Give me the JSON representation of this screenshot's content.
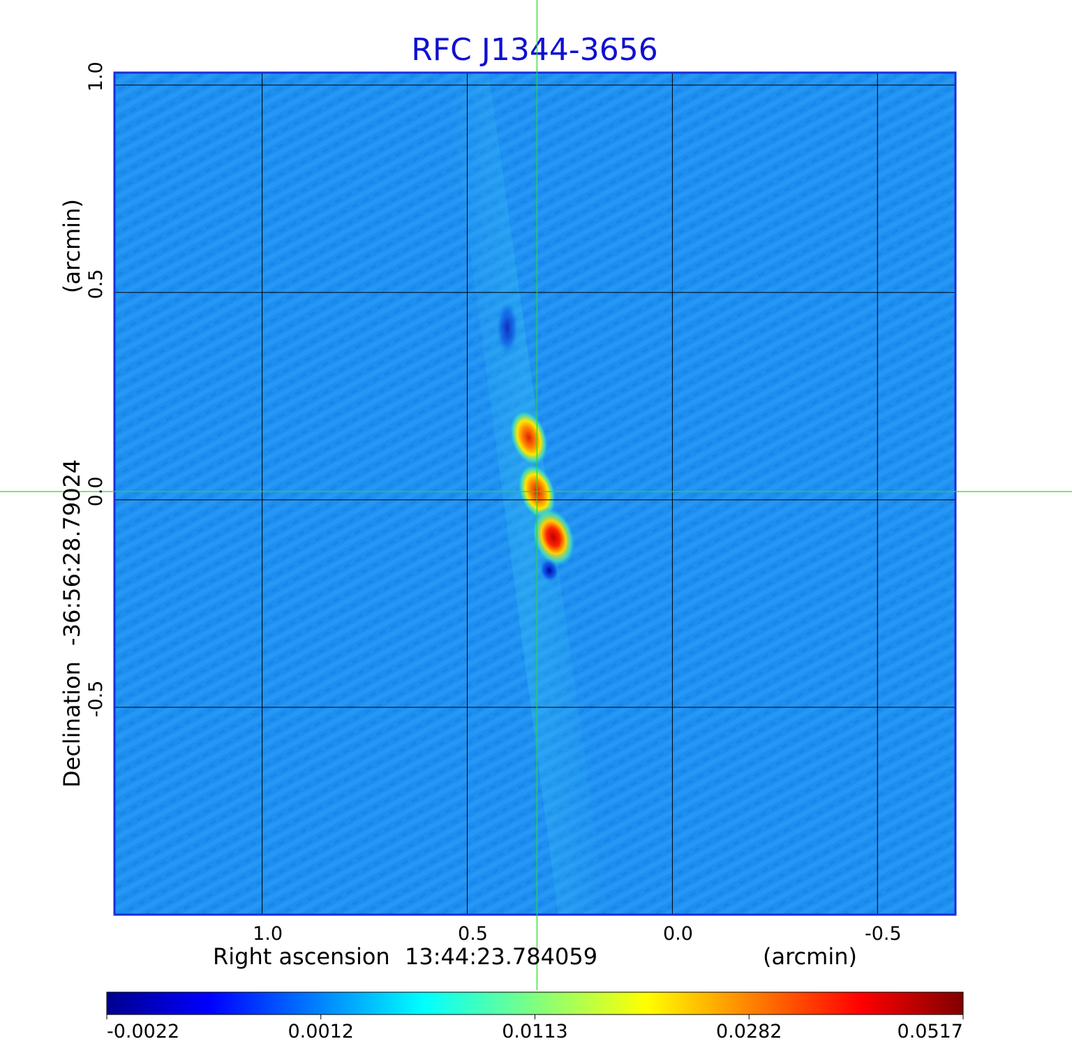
{
  "chart_data": {
    "type": "heatmap",
    "title": "RFC J1344-3656",
    "x_axis": {
      "label_prefix": "Right ascension",
      "center": "13:44:23.784059",
      "unit_label": "(arcmin)",
      "ticks": [
        {
          "value": 1.0,
          "label": "1.0"
        },
        {
          "value": 0.5,
          "label": "0.5"
        },
        {
          "value": 0.0,
          "label": "0.0"
        },
        {
          "value": -0.5,
          "label": "-0.5"
        }
      ],
      "range": [
        1.36,
        -0.69
      ]
    },
    "y_axis": {
      "label_prefix": "Declination",
      "center": "-36:56:28.79024",
      "unit_label": "(arcmin)",
      "ticks": [
        {
          "value": 1.0,
          "label": "1.0"
        },
        {
          "value": 0.5,
          "label": "0.5"
        },
        {
          "value": 0.0,
          "label": "0.0"
        },
        {
          "value": -0.5,
          "label": "-0.5"
        }
      ],
      "range": [
        -1.0,
        1.03
      ]
    },
    "grid": true,
    "crosshair": {
      "x": 0.33,
      "y": 0.02,
      "color": "#22dd22"
    },
    "colormap": "jet",
    "colorbar": {
      "ticks": [
        "-0.0022",
        "0.0012",
        "0.0113",
        "0.0282",
        "0.0517"
      ],
      "min": -0.0022,
      "max": 0.0517
    },
    "components": [
      {
        "x": 0.35,
        "y": 0.15,
        "peak": 0.045
      },
      {
        "x": 0.33,
        "y": 0.02,
        "peak": 0.036
      },
      {
        "x": 0.29,
        "y": -0.09,
        "peak": 0.0517
      },
      {
        "x": 0.3,
        "y": -0.17,
        "peak": -0.0022
      }
    ],
    "colors": {
      "frame": "#1a2ed8",
      "grid": "#000000",
      "title": "#1010d0",
      "background_field": "#1d8ff0"
    }
  }
}
